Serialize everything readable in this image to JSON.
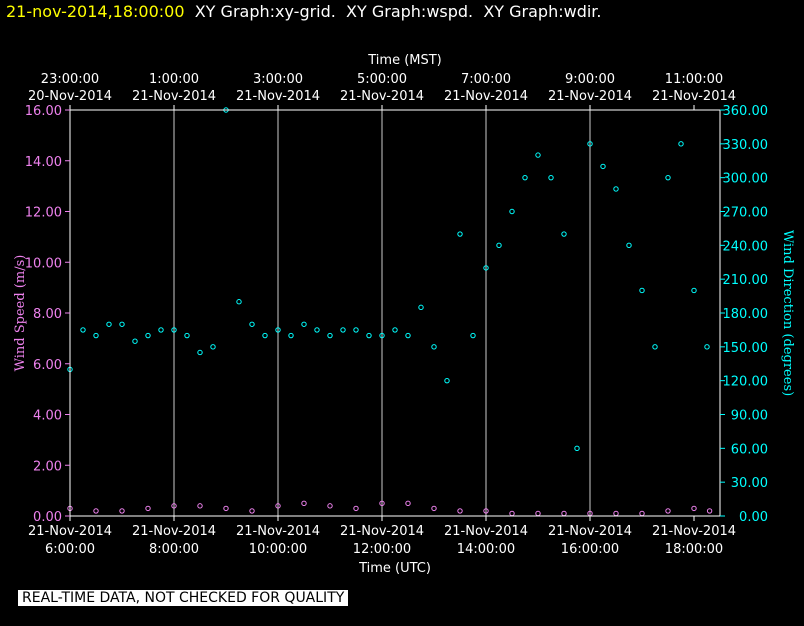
{
  "header": {
    "timestamp": "21-nov-2014,18:00:00",
    "graph_titles": [
      "XY Graph:xy-grid.",
      "XY Graph:wspd.",
      "XY Graph:wdir."
    ]
  },
  "footer": {
    "notice": "REAL-TIME DATA, NOT CHECKED FOR QUALITY"
  },
  "chart_data": {
    "type": "scatter",
    "colors": {
      "speed": "#ee82ee",
      "direction": "#00ffff",
      "grid": "#ffffff",
      "background": "#000000"
    },
    "top_axis": {
      "label": "Time (MST)",
      "ticks": [
        {
          "time": "23:00:00",
          "date": "20-Nov-2014"
        },
        {
          "time": "1:00:00",
          "date": "21-Nov-2014"
        },
        {
          "time": "3:00:00",
          "date": "21-Nov-2014"
        },
        {
          "time": "5:00:00",
          "date": "21-Nov-2014"
        },
        {
          "time": "7:00:00",
          "date": "21-Nov-2014"
        },
        {
          "time": "9:00:00",
          "date": "21-Nov-2014"
        },
        {
          "time": "11:00:00",
          "date": "21-Nov-2014"
        }
      ]
    },
    "bottom_axis": {
      "label": "Time (UTC)",
      "ticks": [
        {
          "date": "21-Nov-2014",
          "time": "6:00:00"
        },
        {
          "date": "21-Nov-2014",
          "time": "8:00:00"
        },
        {
          "date": "21-Nov-2014",
          "time": "10:00:00"
        },
        {
          "date": "21-Nov-2014",
          "time": "12:00:00"
        },
        {
          "date": "21-Nov-2014",
          "time": "14:00:00"
        },
        {
          "date": "21-Nov-2014",
          "time": "16:00:00"
        },
        {
          "date": "21-Nov-2014",
          "time": "18:00:00"
        }
      ],
      "xlim_hours_utc": [
        6,
        18.5
      ]
    },
    "left_axis": {
      "label": "Wind Speed (m/s)",
      "ylim": [
        0,
        16
      ],
      "ticks": [
        "0.00",
        "2.00",
        "4.00",
        "6.00",
        "8.00",
        "10.00",
        "12.00",
        "14.00",
        "16.00"
      ]
    },
    "right_axis": {
      "label": "Wind Direction (degrees)",
      "ylim": [
        0,
        360
      ],
      "ticks": [
        "0.00",
        "30.00",
        "60.00",
        "90.00",
        "120.00",
        "150.00",
        "180.00",
        "210.00",
        "240.00",
        "270.00",
        "300.00",
        "330.00",
        "360.00"
      ]
    },
    "series": [
      {
        "name": "wspd",
        "axis": "left",
        "x_hours_utc": [
          6.0,
          6.5,
          7.0,
          7.5,
          8.0,
          8.5,
          9.0,
          9.5,
          10.0,
          10.5,
          11.0,
          11.5,
          12.0,
          12.5,
          13.0,
          13.5,
          14.0,
          14.5,
          15.0,
          15.5,
          16.0,
          16.5,
          17.0,
          17.5,
          18.0,
          18.3
        ],
        "values": [
          0.3,
          0.2,
          0.2,
          0.3,
          0.4,
          0.4,
          0.3,
          0.2,
          0.4,
          0.5,
          0.4,
          0.3,
          0.5,
          0.5,
          0.3,
          0.2,
          0.2,
          0.1,
          0.1,
          0.1,
          0.1,
          0.1,
          0.1,
          0.2,
          0.3,
          0.2
        ]
      },
      {
        "name": "wdir",
        "axis": "right",
        "x_hours_utc": [
          6.0,
          6.25,
          6.5,
          6.75,
          7.0,
          7.25,
          7.5,
          7.75,
          8.0,
          8.25,
          8.5,
          8.75,
          9.0,
          9.25,
          9.5,
          9.75,
          10.0,
          10.25,
          10.5,
          10.75,
          11.0,
          11.25,
          11.5,
          11.75,
          12.0,
          12.25,
          12.5,
          12.75,
          13.0,
          13.25,
          13.5,
          13.75,
          14.0,
          14.25,
          14.5,
          14.75,
          15.0,
          15.25,
          15.5,
          15.75,
          16.0,
          16.25,
          16.5,
          16.75,
          17.0,
          17.25,
          17.5,
          17.75,
          18.0,
          18.25
        ],
        "values": [
          130,
          165,
          160,
          170,
          170,
          155,
          160,
          165,
          165,
          160,
          145,
          150,
          360,
          190,
          170,
          160,
          165,
          160,
          170,
          165,
          160,
          165,
          165,
          160,
          160,
          165,
          160,
          185,
          150,
          120,
          250,
          160,
          220,
          240,
          270,
          300,
          320,
          300,
          250,
          60,
          330,
          310,
          290,
          240,
          200,
          150,
          300,
          330,
          200,
          150
        ]
      }
    ]
  }
}
